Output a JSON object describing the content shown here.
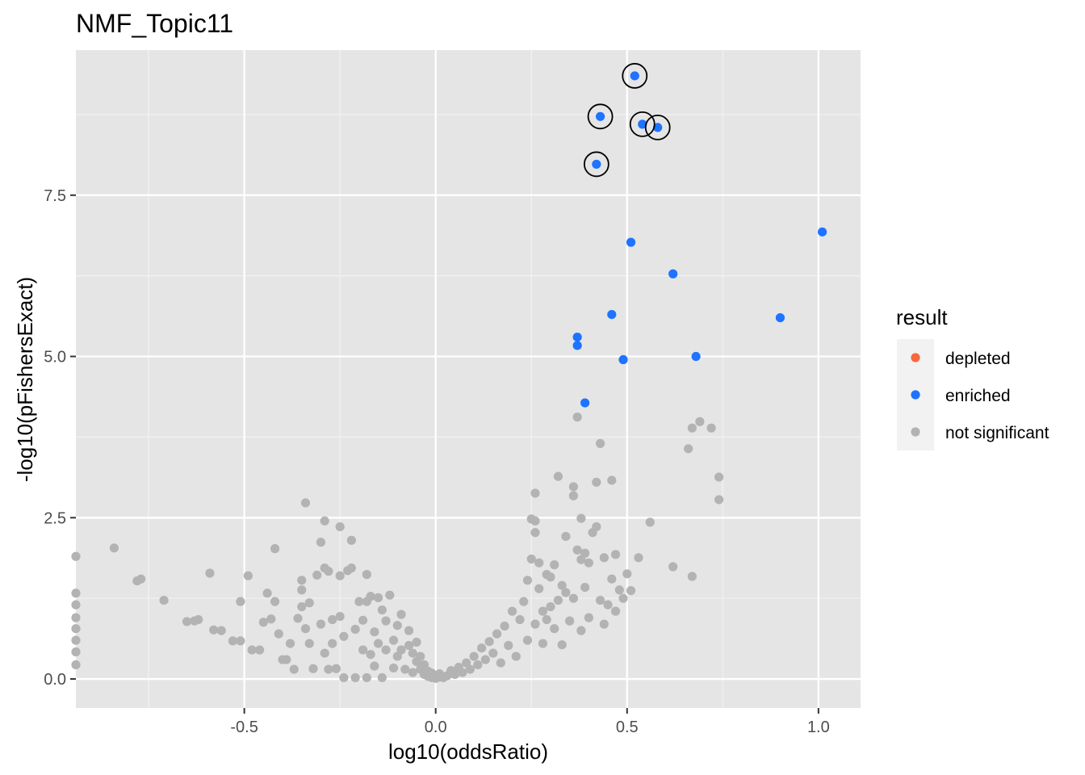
{
  "chart_data": {
    "type": "scatter",
    "title": "NMF_Topic11",
    "xlabel": "log10(oddsRatio)",
    "ylabel": "-log10(pFishersExact)",
    "xlim": [
      -0.94,
      1.11
    ],
    "ylim": [
      -0.45,
      9.75
    ],
    "xticks": [
      -0.5,
      0.0,
      0.5,
      1.0
    ],
    "xtick_labels": [
      "-0.5",
      "0.0",
      "0.5",
      "1.0"
    ],
    "yticks": [
      0.0,
      2.5,
      5.0,
      7.5
    ],
    "ytick_labels": [
      "0.0",
      "2.5",
      "5.0",
      "7.5"
    ],
    "grid": true,
    "panel_background": "#e5e5e5",
    "legend": {
      "title": "result",
      "placement": "right",
      "entries": [
        {
          "label": "depleted",
          "color": "#f8683d"
        },
        {
          "label": "enriched",
          "color": "#1e73ff"
        },
        {
          "label": "not significant",
          "color": "#b3b3b3"
        }
      ]
    },
    "series": [
      {
        "name": "enriched",
        "color": "#1e73ff",
        "points": [
          [
            0.52,
            9.35
          ],
          [
            0.43,
            8.72
          ],
          [
            0.54,
            8.6
          ],
          [
            0.58,
            8.55
          ],
          [
            0.42,
            7.98
          ],
          [
            1.01,
            6.93
          ],
          [
            0.51,
            6.77
          ],
          [
            0.62,
            6.28
          ],
          [
            0.46,
            5.65
          ],
          [
            0.9,
            5.6
          ],
          [
            0.37,
            5.3
          ],
          [
            0.37,
            5.17
          ],
          [
            0.68,
            5.0
          ],
          [
            0.49,
            4.95
          ],
          [
            0.39,
            4.28
          ]
        ]
      },
      {
        "name": "not significant",
        "color": "#b3b3b3",
        "points": [
          [
            -0.94,
            1.9
          ],
          [
            -0.94,
            1.33
          ],
          [
            -0.94,
            1.15
          ],
          [
            -0.94,
            0.95
          ],
          [
            -0.94,
            0.78
          ],
          [
            -0.94,
            0.6
          ],
          [
            -0.94,
            0.42
          ],
          [
            -0.94,
            0.22
          ],
          [
            -0.84,
            2.03
          ],
          [
            -0.78,
            1.52
          ],
          [
            -0.77,
            1.55
          ],
          [
            -0.71,
            1.22
          ],
          [
            -0.65,
            0.89
          ],
          [
            -0.63,
            0.9
          ],
          [
            -0.62,
            0.92
          ],
          [
            -0.59,
            1.64
          ],
          [
            -0.58,
            0.76
          ],
          [
            -0.56,
            0.75
          ],
          [
            -0.53,
            0.59
          ],
          [
            -0.51,
            0.59
          ],
          [
            -0.51,
            1.2
          ],
          [
            -0.49,
            1.6
          ],
          [
            -0.48,
            0.45
          ],
          [
            -0.46,
            0.45
          ],
          [
            -0.45,
            0.88
          ],
          [
            -0.44,
            1.33
          ],
          [
            -0.43,
            0.93
          ],
          [
            -0.42,
            2.02
          ],
          [
            -0.42,
            1.2
          ],
          [
            -0.41,
            0.7
          ],
          [
            -0.4,
            0.3
          ],
          [
            -0.39,
            0.3
          ],
          [
            -0.38,
            0.55
          ],
          [
            -0.37,
            0.15
          ],
          [
            -0.36,
            0.94
          ],
          [
            -0.35,
            1.53
          ],
          [
            -0.35,
            1.38
          ],
          [
            -0.35,
            1.12
          ],
          [
            -0.34,
            0.78
          ],
          [
            -0.34,
            2.73
          ],
          [
            -0.33,
            1.18
          ],
          [
            -0.33,
            0.55
          ],
          [
            -0.32,
            0.16
          ],
          [
            -0.31,
            1.61
          ],
          [
            -0.3,
            0.85
          ],
          [
            -0.3,
            2.12
          ],
          [
            -0.29,
            2.45
          ],
          [
            -0.29,
            1.72
          ],
          [
            -0.29,
            0.4
          ],
          [
            -0.28,
            0.15
          ],
          [
            -0.28,
            1.67
          ],
          [
            -0.27,
            0.92
          ],
          [
            -0.27,
            0.55
          ],
          [
            -0.26,
            0.16
          ],
          [
            -0.25,
            2.36
          ],
          [
            -0.25,
            1.6
          ],
          [
            -0.25,
            0.97
          ],
          [
            -0.24,
            0.66
          ],
          [
            -0.24,
            0.02
          ],
          [
            -0.23,
            1.68
          ],
          [
            -0.22,
            1.72
          ],
          [
            -0.22,
            2.15
          ],
          [
            -0.21,
            0.77
          ],
          [
            -0.21,
            0.02
          ],
          [
            -0.2,
            1.2
          ],
          [
            -0.19,
            0.45
          ],
          [
            -0.19,
            0.91
          ],
          [
            -0.18,
            0.02
          ],
          [
            -0.18,
            1.62
          ],
          [
            -0.18,
            1.2
          ],
          [
            -0.17,
            0.38
          ],
          [
            -0.17,
            1.28
          ],
          [
            -0.16,
            0.73
          ],
          [
            -0.16,
            0.2
          ],
          [
            -0.15,
            1.26
          ],
          [
            -0.15,
            0.55
          ],
          [
            -0.14,
            0.02
          ],
          [
            -0.14,
            1.07
          ],
          [
            -0.13,
            0.9
          ],
          [
            -0.13,
            0.45
          ],
          [
            -0.12,
            1.3
          ],
          [
            -0.11,
            0.17
          ],
          [
            -0.11,
            0.6
          ],
          [
            -0.1,
            0.83
          ],
          [
            -0.1,
            0.35
          ],
          [
            -0.09,
            1.0
          ],
          [
            -0.09,
            0.45
          ],
          [
            -0.08,
            0.15
          ],
          [
            -0.07,
            0.75
          ],
          [
            -0.07,
            0.52
          ],
          [
            -0.06,
            0.1
          ],
          [
            -0.06,
            0.4
          ],
          [
            -0.05,
            0.27
          ],
          [
            -0.05,
            0.57
          ],
          [
            -0.04,
            0.15
          ],
          [
            -0.04,
            0.35
          ],
          [
            -0.03,
            0.07
          ],
          [
            -0.03,
            0.22
          ],
          [
            -0.02,
            0.12
          ],
          [
            -0.02,
            0.04
          ],
          [
            -0.01,
            0.09
          ],
          [
            -0.01,
            0.02
          ],
          [
            0.0,
            0.05
          ],
          [
            0.0,
            0.01
          ],
          [
            0.01,
            0.03
          ],
          [
            0.01,
            0.08
          ],
          [
            0.02,
            0.02
          ],
          [
            0.03,
            0.05
          ],
          [
            0.04,
            0.13
          ],
          [
            0.05,
            0.07
          ],
          [
            0.06,
            0.18
          ],
          [
            0.07,
            0.1
          ],
          [
            0.08,
            0.25
          ],
          [
            0.09,
            0.15
          ],
          [
            0.1,
            0.35
          ],
          [
            0.11,
            0.22
          ],
          [
            0.12,
            0.48
          ],
          [
            0.13,
            0.3
          ],
          [
            0.14,
            0.58
          ],
          [
            0.15,
            0.4
          ],
          [
            0.16,
            0.7
          ],
          [
            0.17,
            0.25
          ],
          [
            0.18,
            0.82
          ],
          [
            0.19,
            0.52
          ],
          [
            0.2,
            1.05
          ],
          [
            0.21,
            0.35
          ],
          [
            0.22,
            0.92
          ],
          [
            0.23,
            1.2
          ],
          [
            0.24,
            0.6
          ],
          [
            0.24,
            1.53
          ],
          [
            0.25,
            1.86
          ],
          [
            0.25,
            2.48
          ],
          [
            0.26,
            0.85
          ],
          [
            0.26,
            2.45
          ],
          [
            0.26,
            2.27
          ],
          [
            0.26,
            2.88
          ],
          [
            0.27,
            1.4
          ],
          [
            0.27,
            1.8
          ],
          [
            0.28,
            0.55
          ],
          [
            0.28,
            1.05
          ],
          [
            0.29,
            1.62
          ],
          [
            0.29,
            0.92
          ],
          [
            0.3,
            1.58
          ],
          [
            0.3,
            1.12
          ],
          [
            0.31,
            1.77
          ],
          [
            0.31,
            0.78
          ],
          [
            0.32,
            1.22
          ],
          [
            0.32,
            3.14
          ],
          [
            0.33,
            0.53
          ],
          [
            0.33,
            1.45
          ],
          [
            0.34,
            1.34
          ],
          [
            0.34,
            2.21
          ],
          [
            0.35,
            0.9
          ],
          [
            0.36,
            2.84
          ],
          [
            0.36,
            2.98
          ],
          [
            0.36,
            1.25
          ],
          [
            0.37,
            2.0
          ],
          [
            0.37,
            4.06
          ],
          [
            0.38,
            1.85
          ],
          [
            0.38,
            2.49
          ],
          [
            0.38,
            0.75
          ],
          [
            0.39,
            1.42
          ],
          [
            0.39,
            1.95
          ],
          [
            0.4,
            1.8
          ],
          [
            0.4,
            0.95
          ],
          [
            0.41,
            2.27
          ],
          [
            0.42,
            2.36
          ],
          [
            0.42,
            3.05
          ],
          [
            0.43,
            1.22
          ],
          [
            0.43,
            3.65
          ],
          [
            0.44,
            1.88
          ],
          [
            0.44,
            0.85
          ],
          [
            0.45,
            1.15
          ],
          [
            0.46,
            1.55
          ],
          [
            0.46,
            3.08
          ],
          [
            0.47,
            1.93
          ],
          [
            0.47,
            1.05
          ],
          [
            0.48,
            1.38
          ],
          [
            0.49,
            1.25
          ],
          [
            0.5,
            1.63
          ],
          [
            0.51,
            1.37
          ],
          [
            0.53,
            1.88
          ],
          [
            0.56,
            2.43
          ],
          [
            0.62,
            1.74
          ],
          [
            0.66,
            3.57
          ],
          [
            0.67,
            3.89
          ],
          [
            0.67,
            1.59
          ],
          [
            0.69,
            3.99
          ],
          [
            0.72,
            3.89
          ],
          [
            0.74,
            3.13
          ],
          [
            0.74,
            2.78
          ]
        ]
      }
    ],
    "highlighted_points": [
      [
        0.52,
        9.35
      ],
      [
        0.43,
        8.72
      ],
      [
        0.54,
        8.6
      ],
      [
        0.58,
        8.55
      ],
      [
        0.42,
        7.98
      ]
    ]
  }
}
